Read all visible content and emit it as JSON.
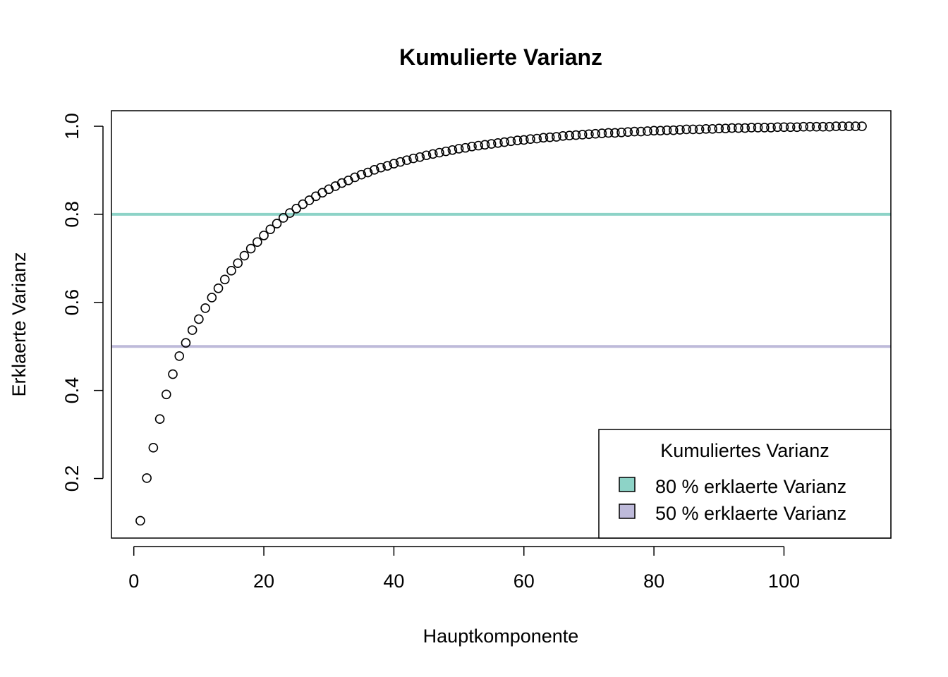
{
  "chart_data": {
    "type": "scatter",
    "title": "Kumulierte Varianz",
    "xlabel": "Hauptkomponente",
    "ylabel": "Erklaerte Varianz",
    "xlim": [
      -3.44,
      116.44
    ],
    "ylim": [
      0.0647,
      1.0353
    ],
    "x_ticks": [
      "0",
      "20",
      "40",
      "60",
      "80",
      "100"
    ],
    "x_tick_values": [
      0,
      20,
      40,
      60,
      80,
      100
    ],
    "y_ticks": [
      "0.2",
      "0.4",
      "0.6",
      "0.8",
      "1.0"
    ],
    "y_tick_values": [
      0.2,
      0.4,
      0.6,
      0.8,
      1.0
    ],
    "grid": false,
    "reference_lines": [
      {
        "y": 0.8,
        "color": "#8DD3C7",
        "label": "80 % erklaerte Varianz"
      },
      {
        "y": 0.5,
        "color": "#BEBADA",
        "label": "50 % erklaerte Varianz"
      }
    ],
    "legend": {
      "title": "Kumuliertes Varianz",
      "position": "bottom-right",
      "entries": [
        {
          "label": "80 % erklaerte Varianz",
          "color": "#8DD3C7"
        },
        {
          "label": "50 % erklaerte Varianz",
          "color": "#BEBADA"
        }
      ]
    },
    "series": [
      {
        "marker": "open-circle",
        "x": [
          1,
          2,
          3,
          4,
          5,
          6,
          7,
          8,
          9,
          10,
          11,
          12,
          13,
          14,
          15,
          16,
          17,
          18,
          19,
          20,
          21,
          22,
          23,
          24,
          25,
          26,
          27,
          28,
          29,
          30,
          31,
          32,
          33,
          34,
          35,
          36,
          37,
          38,
          39,
          40,
          41,
          42,
          43,
          44,
          45,
          46,
          47,
          48,
          49,
          50,
          51,
          52,
          53,
          54,
          55,
          56,
          57,
          58,
          59,
          60,
          61,
          62,
          63,
          64,
          65,
          66,
          67,
          68,
          69,
          70,
          71,
          72,
          73,
          74,
          75,
          76,
          77,
          78,
          79,
          80,
          81,
          82,
          83,
          84,
          85,
          86,
          87,
          88,
          89,
          90,
          91,
          92,
          93,
          94,
          95,
          96,
          97,
          98,
          99,
          100,
          101,
          102,
          103,
          104,
          105,
          106,
          107,
          108,
          109,
          110,
          111,
          112
        ],
        "y": [
          0.104,
          0.201,
          0.27,
          0.335,
          0.391,
          0.437,
          0.478,
          0.508,
          0.537,
          0.562,
          0.587,
          0.611,
          0.632,
          0.652,
          0.672,
          0.689,
          0.706,
          0.722,
          0.737,
          0.752,
          0.766,
          0.779,
          0.792,
          0.803,
          0.813,
          0.823,
          0.832,
          0.841,
          0.849,
          0.857,
          0.864,
          0.871,
          0.877,
          0.884,
          0.89,
          0.895,
          0.901,
          0.906,
          0.91,
          0.915,
          0.919,
          0.923,
          0.927,
          0.93,
          0.934,
          0.937,
          0.94,
          0.943,
          0.946,
          0.949,
          0.951,
          0.954,
          0.956,
          0.958,
          0.96,
          0.962,
          0.964,
          0.966,
          0.968,
          0.969,
          0.971,
          0.972,
          0.974,
          0.975,
          0.976,
          0.978,
          0.979,
          0.98,
          0.981,
          0.982,
          0.983,
          0.984,
          0.985,
          0.985,
          0.986,
          0.987,
          0.988,
          0.988,
          0.989,
          0.99,
          0.99,
          0.991,
          0.991,
          0.992,
          0.993,
          0.993,
          0.993,
          0.994,
          0.994,
          0.995,
          0.995,
          0.996,
          0.996,
          0.996,
          0.997,
          0.997,
          0.997,
          0.997,
          0.998,
          0.998,
          0.998,
          0.998,
          0.999,
          0.999,
          0.999,
          0.999,
          0.999,
          1.0,
          1.0,
          1.0,
          1.0,
          1.0
        ]
      }
    ]
  }
}
